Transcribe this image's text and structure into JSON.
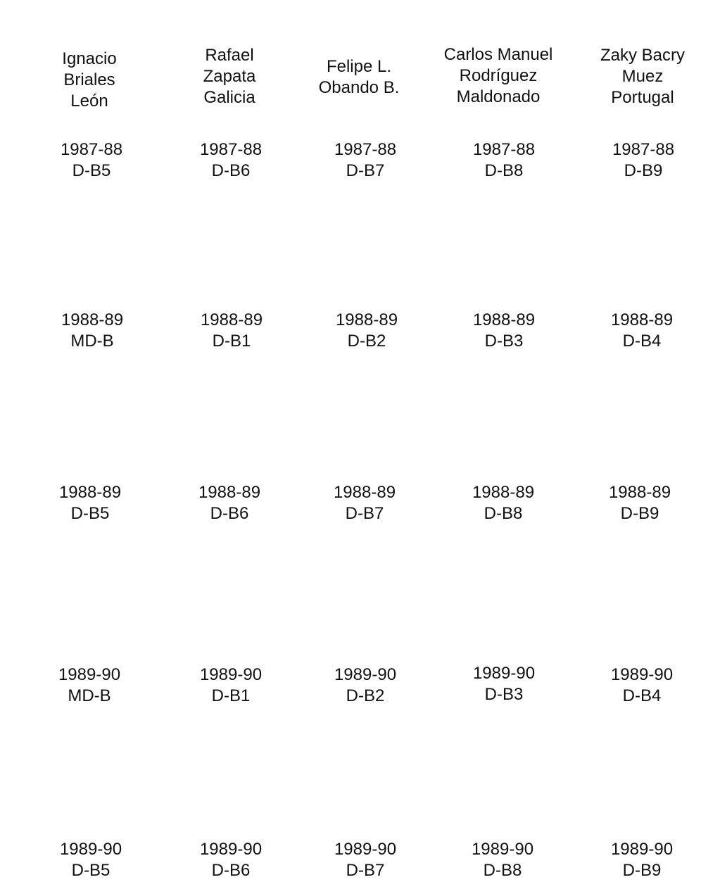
{
  "headers": [
    [
      "Ignacio",
      "Briales",
      "León"
    ],
    [
      "Rafael",
      "Zapata",
      "Galicia"
    ],
    [
      "Felipe L.",
      "Obando B."
    ],
    [
      "Carlos Manuel",
      "Rodríguez",
      "Maldonado"
    ],
    [
      "Zaky Bacry",
      "Muez",
      "Portugal"
    ]
  ],
  "rows": [
    [
      [
        "1987-88",
        "D-B5"
      ],
      [
        "1987-88",
        "D-B6"
      ],
      [
        "1987-88",
        "D-B7"
      ],
      [
        "1987-88",
        "D-B8"
      ],
      [
        "1987-88",
        "D-B9"
      ]
    ],
    [
      [
        "1988-89",
        "MD-B"
      ],
      [
        "1988-89",
        "D-B1"
      ],
      [
        "1988-89",
        "D-B2"
      ],
      [
        "1988-89",
        "D-B3"
      ],
      [
        "1988-89",
        "D-B4"
      ]
    ],
    [
      [
        "1988-89",
        "D-B5"
      ],
      [
        "1988-89",
        "D-B6"
      ],
      [
        "1988-89",
        "D-B7"
      ],
      [
        "1988-89",
        "D-B8"
      ],
      [
        "1988-89",
        "D-B9"
      ]
    ],
    [
      [
        "1989-90",
        "MD-B"
      ],
      [
        "1989-90",
        "D-B1"
      ],
      [
        "1989-90",
        "D-B2"
      ],
      [
        "1989-90",
        "D-B3"
      ],
      [
        "1989-90",
        "D-B4"
      ]
    ],
    [
      [
        "1989-90",
        "D-B5"
      ],
      [
        "1989-90",
        "D-B6"
      ],
      [
        "1989-90",
        "D-B7"
      ],
      [
        "1989-90",
        "D-B8"
      ],
      [
        "1989-90",
        "D-B9"
      ]
    ]
  ]
}
